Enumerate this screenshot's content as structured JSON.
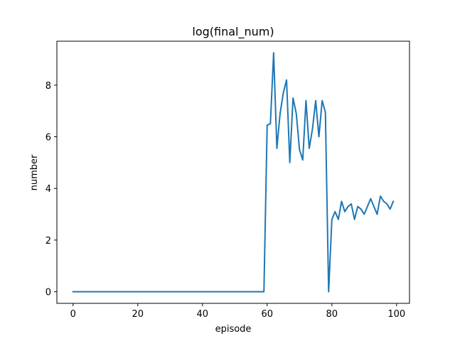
{
  "chart_data": {
    "type": "line",
    "title": "log(final_num)",
    "xlabel": "episode",
    "ylabel": "number",
    "xlim": [
      -5,
      104
    ],
    "ylim": [
      -0.45,
      9.7
    ],
    "xticks": [
      0,
      20,
      40,
      60,
      80,
      100
    ],
    "yticks": [
      0,
      2,
      4,
      6,
      8
    ],
    "grid": false,
    "series": [
      {
        "color": "#1f77b4",
        "x": [
          0,
          1,
          2,
          3,
          4,
          5,
          6,
          7,
          8,
          9,
          10,
          11,
          12,
          13,
          14,
          15,
          16,
          17,
          18,
          19,
          20,
          21,
          22,
          23,
          24,
          25,
          26,
          27,
          28,
          29,
          30,
          31,
          32,
          33,
          34,
          35,
          36,
          37,
          38,
          39,
          40,
          41,
          42,
          43,
          44,
          45,
          46,
          47,
          48,
          49,
          50,
          51,
          52,
          53,
          54,
          55,
          56,
          57,
          58,
          59,
          60,
          61,
          62,
          63,
          64,
          65,
          66,
          67,
          68,
          69,
          70,
          71,
          72,
          73,
          74,
          75,
          76,
          77,
          78,
          79,
          80,
          81,
          82,
          83,
          84,
          85,
          86,
          87,
          88,
          89,
          90,
          91,
          92,
          93,
          94,
          95,
          96,
          97,
          98,
          99
        ],
        "y": [
          0,
          0,
          0,
          0,
          0,
          0,
          0,
          0,
          0,
          0,
          0,
          0,
          0,
          0,
          0,
          0,
          0,
          0,
          0,
          0,
          0,
          0,
          0,
          0,
          0,
          0,
          0,
          0,
          0,
          0,
          0,
          0,
          0,
          0,
          0,
          0,
          0,
          0,
          0,
          0,
          0,
          0,
          0,
          0,
          0,
          0,
          0,
          0,
          0,
          0,
          0,
          0,
          0,
          0,
          0,
          0,
          0,
          0,
          0,
          0,
          6.45,
          6.5,
          9.25,
          5.55,
          6.9,
          7.7,
          8.2,
          5.0,
          7.5,
          6.9,
          5.5,
          5.1,
          7.4,
          5.55,
          6.3,
          7.4,
          6.0,
          7.4,
          6.95,
          0.0,
          2.8,
          3.1,
          2.8,
          3.5,
          3.1,
          3.3,
          3.4,
          2.8,
          3.3,
          3.2,
          3.0,
          3.3,
          3.6,
          3.3,
          3.0,
          3.7,
          3.5,
          3.4,
          3.2,
          3.5
        ]
      }
    ]
  }
}
